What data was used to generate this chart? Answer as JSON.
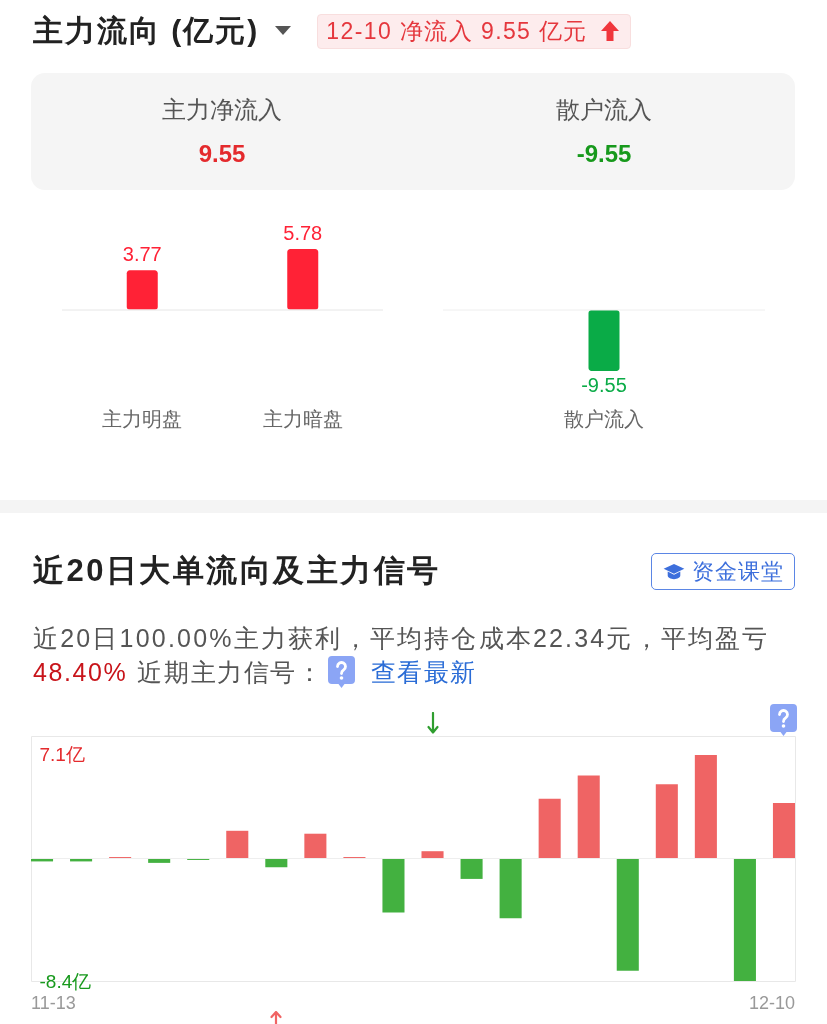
{
  "chart_data": [
    {
      "type": "other",
      "title": "主力流向 (亿元)",
      "annotations": [
        "12-10 净流入 9.55 亿元"
      ],
      "categories": [
        "主力净流入",
        "散户流入"
      ],
      "values": [
        9.55,
        -9.55
      ],
      "data_labels": true
    },
    {
      "type": "bar",
      "categories": [
        "主力明盘",
        "主力暗盘"
      ],
      "values": [
        3.77,
        5.78
      ],
      "color": "#ff2236",
      "data_labels": true,
      "ref_lines": [
        {
          "axis": "y",
          "value": 0,
          "color": "#eeeeee"
        }
      ]
    },
    {
      "type": "bar",
      "categories": [
        "散户流入"
      ],
      "values": [
        -9.55
      ],
      "color": "#0aab47",
      "data_labels": true,
      "ref_lines": [
        {
          "axis": "y",
          "value": 0,
          "color": "#eeeeee"
        }
      ]
    },
    {
      "type": "bar",
      "title": "近20日大单流向及主力信号",
      "subtitle": "近20日100.00%主力获利，平均持仓成本22.34元，平均盈亏",
      "annotations": [
        "48.40%",
        "近期主力信号：",
        "查看最新",
        "资金课堂"
      ],
      "categories": [
        "11-13",
        null,
        null,
        null,
        null,
        null,
        null,
        null,
        null,
        null,
        null,
        null,
        null,
        null,
        null,
        null,
        null,
        null,
        null,
        "12-10"
      ],
      "values": [
        -0.2,
        -0.2,
        0.1,
        -0.3,
        -0.1,
        1.9,
        -0.6,
        1.7,
        0.1,
        -3.7,
        0.5,
        -1.4,
        -4.1,
        4.1,
        5.7,
        -7.7,
        5.1,
        7.1,
        -8.4,
        3.8
      ],
      "colors": [
        "#43b140",
        "#43b140",
        "#ef6464",
        "#43b140",
        "#43b140",
        "#ef6464",
        "#43b140",
        "#ef6464",
        "#ef6464",
        "#43b140",
        "#ef6464",
        "#43b140",
        "#43b140",
        "#ef6464",
        "#ef6464",
        "#43b140",
        "#ef6464",
        "#ef6464",
        "#43b140",
        "#ef6464"
      ],
      "ylim": [
        -8.4,
        8.4
      ],
      "yticks": [
        {
          "value": 7.1,
          "label": "7.1亿"
        },
        {
          "value": -8.4,
          "label": "-8.4亿"
        }
      ],
      "ref_lines": [
        {
          "axis": "y",
          "value": 0,
          "color": "#eeeeee"
        }
      ]
    }
  ]
}
